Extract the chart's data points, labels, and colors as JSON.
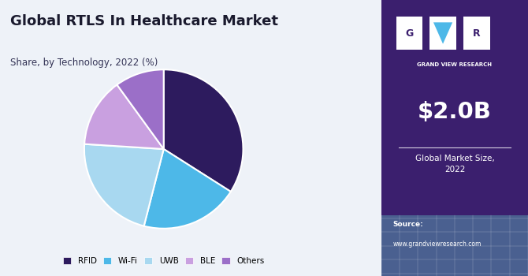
{
  "title": "Global RTLS In Healthcare Market",
  "subtitle": "Share, by Technology, 2022 (%)",
  "slices": [
    "RFID",
    "Wi-Fi",
    "UWB",
    "BLE",
    "Others"
  ],
  "values": [
    34,
    20,
    22,
    14,
    10
  ],
  "colors": [
    "#2d1b5e",
    "#4db8e8",
    "#a8d8f0",
    "#c9a0e0",
    "#9b6fc8"
  ],
  "legend_labels": [
    "RFID",
    "Wi-Fi",
    "UWB",
    "BLE",
    "Others"
  ],
  "market_size": "$2.0B",
  "market_size_label": "Global Market Size,\n2022",
  "source_label": "Source:",
  "source_url": "www.grandviewresearch.com",
  "right_panel_bg": "#3b1f6e",
  "right_panel_bottom_bg": "#4a6090",
  "left_panel_bg": "#eef2f8",
  "title_color": "#1a1a2e",
  "subtitle_color": "#333355",
  "gvr_label": "GRAND VIEW RESEARCH",
  "logo_letters": [
    "G",
    "V",
    "R"
  ],
  "triangle_color": "#4db8e8",
  "white": "#ffffff"
}
